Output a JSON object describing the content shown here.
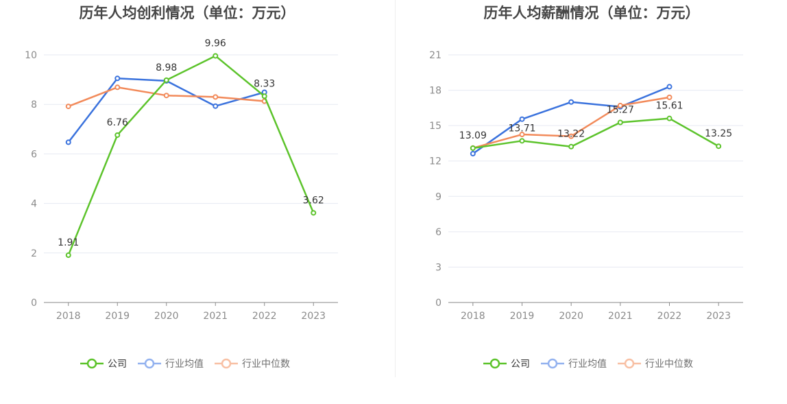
{
  "colors": {
    "company": "#5cc32b",
    "industry_avg": "#3a72dd",
    "industry_median": "#f28a5a",
    "grid": "#e6e9f2",
    "axis": "#8a8a8a"
  },
  "legend": [
    {
      "name": "公司",
      "color": "#5cc32b",
      "text_color": "#333333"
    },
    {
      "name": "行业均值",
      "color": "#93b2ef",
      "text_color": "#6e6e6e"
    },
    {
      "name": "行业中位数",
      "color": "#f8c0a4",
      "text_color": "#6e6e6e"
    }
  ],
  "chart_data": [
    {
      "type": "line",
      "title": "历年人均创利情况（单位：万元）",
      "categories": [
        "2018",
        "2019",
        "2020",
        "2021",
        "2022",
        "2023"
      ],
      "ylim": [
        0,
        10
      ],
      "yticks": [
        0,
        2,
        4,
        6,
        8,
        10
      ],
      "grid": true,
      "legend_position": "bottom",
      "series": [
        {
          "name": "公司",
          "values": [
            1.91,
            6.76,
            8.98,
            9.96,
            8.33,
            3.62
          ],
          "labels": [
            "1.91",
            "6.76",
            "8.98",
            "9.96",
            "8.33",
            "3.62"
          ]
        },
        {
          "name": "行业均值",
          "values": [
            6.47,
            9.05,
            8.95,
            7.93,
            8.49,
            null
          ]
        },
        {
          "name": "行业中位数",
          "values": [
            7.92,
            8.69,
            8.36,
            8.3,
            8.13,
            null
          ]
        }
      ]
    },
    {
      "type": "line",
      "title": "历年人均薪酬情况（单位：万元）",
      "categories": [
        "2018",
        "2019",
        "2020",
        "2021",
        "2022",
        "2023"
      ],
      "ylim": [
        0,
        21
      ],
      "yticks": [
        0,
        3,
        6,
        9,
        12,
        15,
        18,
        21
      ],
      "grid": true,
      "legend_position": "bottom",
      "series": [
        {
          "name": "公司",
          "values": [
            13.09,
            13.71,
            13.22,
            15.27,
            15.61,
            13.25
          ],
          "labels": [
            "13.09",
            "13.71",
            "13.22",
            "15.27",
            "15.61",
            "13.25"
          ]
        },
        {
          "name": "行业均值",
          "values": [
            12.62,
            15.55,
            17.0,
            16.6,
            18.3,
            null
          ]
        },
        {
          "name": "行业中位数",
          "values": [
            13.1,
            14.25,
            14.1,
            16.7,
            17.4,
            null
          ]
        }
      ]
    }
  ]
}
